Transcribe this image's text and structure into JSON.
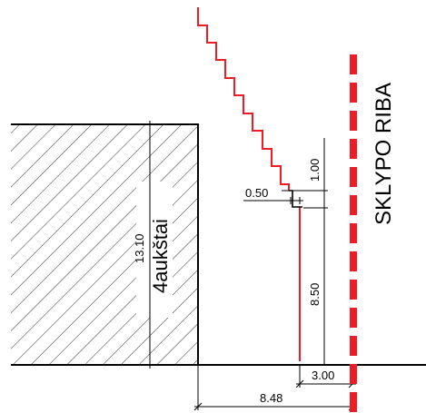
{
  "drawing": {
    "building": {
      "height_label": "13.10",
      "floors_label": "4aukštai"
    },
    "boundary_label": "SKLYPO RIBA",
    "dimensions": {
      "step_width": "0.50",
      "step_height": "1.00",
      "wall_height": "8.50",
      "offset_to_boundary": "3.00",
      "total_distance": "8.48"
    },
    "colors": {
      "line": "#000000",
      "accent": "#ee1c25"
    }
  }
}
